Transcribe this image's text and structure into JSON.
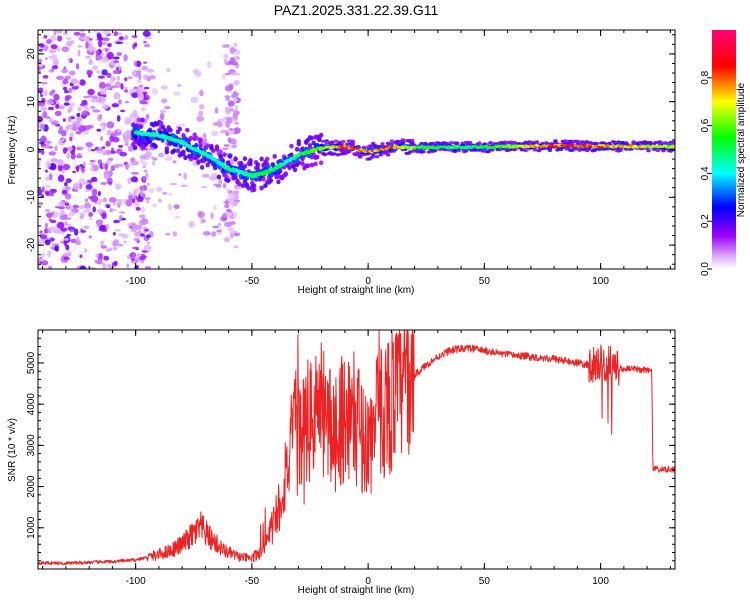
{
  "title": "PAZ1.2025.331.22.39.G11",
  "colors": {
    "snr_line": "#ee2222",
    "frame": "#000000",
    "background": "#ffffff",
    "spectro_bg": "#ffffff"
  },
  "chart_data": [
    {
      "type": "heatmap",
      "name": "spectrogram",
      "xlabel": "Height of straight line (km)",
      "ylabel": "Frequency (Hz)",
      "xlim": [
        -142,
        132
      ],
      "ylim": [
        -25,
        25
      ],
      "xticks": [
        -100,
        -50,
        0,
        50,
        100
      ],
      "xtick_labels": [
        "-100",
        "-50",
        "0",
        "50",
        "100"
      ],
      "yticks": [
        -20,
        -10,
        0,
        10,
        20
      ],
      "ytick_labels": [
        "-20",
        "-10",
        "0",
        "10",
        "20"
      ],
      "colorbar": {
        "label": "Normalized spectral amplitude",
        "range": [
          0,
          1
        ],
        "ticks": [
          0.0,
          0.2,
          0.4,
          0.6,
          0.8
        ],
        "tick_labels": [
          "0.0",
          "0.2",
          "0.4",
          "0.6",
          "0.8"
        ],
        "colormap": [
          "#ffffff",
          "#9900ff",
          "#0000ff",
          "#00ffff",
          "#00ff00",
          "#ffff00",
          "#ff0000",
          "#ff00ff"
        ]
      },
      "ridge": {
        "x": [
          -100,
          -90,
          -80,
          -70,
          -60,
          -50,
          -45,
          -40,
          -35,
          -30,
          -25,
          -20,
          -10,
          0,
          10,
          20,
          40,
          60,
          80,
          100,
          130
        ],
        "freq": [
          3.5,
          3.0,
          1.5,
          -1.0,
          -4.0,
          -5.5,
          -5.0,
          -4.0,
          -2.5,
          -1.2,
          -0.3,
          0.3,
          0.6,
          -0.5,
          0.5,
          0.4,
          0.5,
          0.6,
          0.8,
          0.7,
          0.6
        ],
        "amplitude": [
          0.45,
          0.45,
          0.45,
          0.45,
          0.45,
          0.5,
          0.55,
          0.5,
          0.45,
          0.5,
          0.55,
          0.6,
          0.85,
          0.8,
          0.8,
          0.6,
          0.5,
          0.6,
          0.85,
          0.8,
          0.65
        ]
      }
    },
    {
      "type": "line",
      "name": "snr",
      "xlabel": "Height of straight line (km)",
      "ylabel": "SNR (10 * v/v)",
      "xlim": [
        -142,
        132
      ],
      "ylim": [
        0,
        5800
      ],
      "xticks": [
        -100,
        -50,
        0,
        50,
        100
      ],
      "xtick_labels": [
        "-100",
        "-50",
        "0",
        "50",
        "100"
      ],
      "yticks": [
        1000,
        2000,
        3000,
        4000,
        5000
      ],
      "ytick_labels": [
        "1000",
        "2000",
        "3000",
        "4000",
        "5000"
      ],
      "x": [
        -142,
        -130,
        -120,
        -110,
        -100,
        -90,
        -85,
        -80,
        -75,
        -72,
        -68,
        -62,
        -56,
        -50,
        -45,
        -42,
        -38,
        -35,
        -32,
        -28,
        -25,
        -20,
        -15,
        -10,
        -5,
        0,
        5,
        10,
        15,
        20,
        25,
        30,
        35,
        40,
        45,
        50,
        60,
        70,
        80,
        90,
        95,
        100,
        105,
        110,
        115,
        122,
        122.5,
        126,
        132
      ],
      "values": [
        150,
        140,
        160,
        180,
        220,
        350,
        450,
        600,
        850,
        1000,
        750,
        450,
        300,
        250,
        500,
        900,
        1600,
        2500,
        3200,
        3300,
        3600,
        3900,
        3300,
        3800,
        3600,
        3000,
        3800,
        4100,
        4400,
        4700,
        4950,
        5150,
        5300,
        5350,
        5350,
        5300,
        5200,
        5150,
        5100,
        5000,
        4950,
        5000,
        4950,
        4850,
        4850,
        4820,
        2450,
        2400,
        2420
      ]
    }
  ]
}
